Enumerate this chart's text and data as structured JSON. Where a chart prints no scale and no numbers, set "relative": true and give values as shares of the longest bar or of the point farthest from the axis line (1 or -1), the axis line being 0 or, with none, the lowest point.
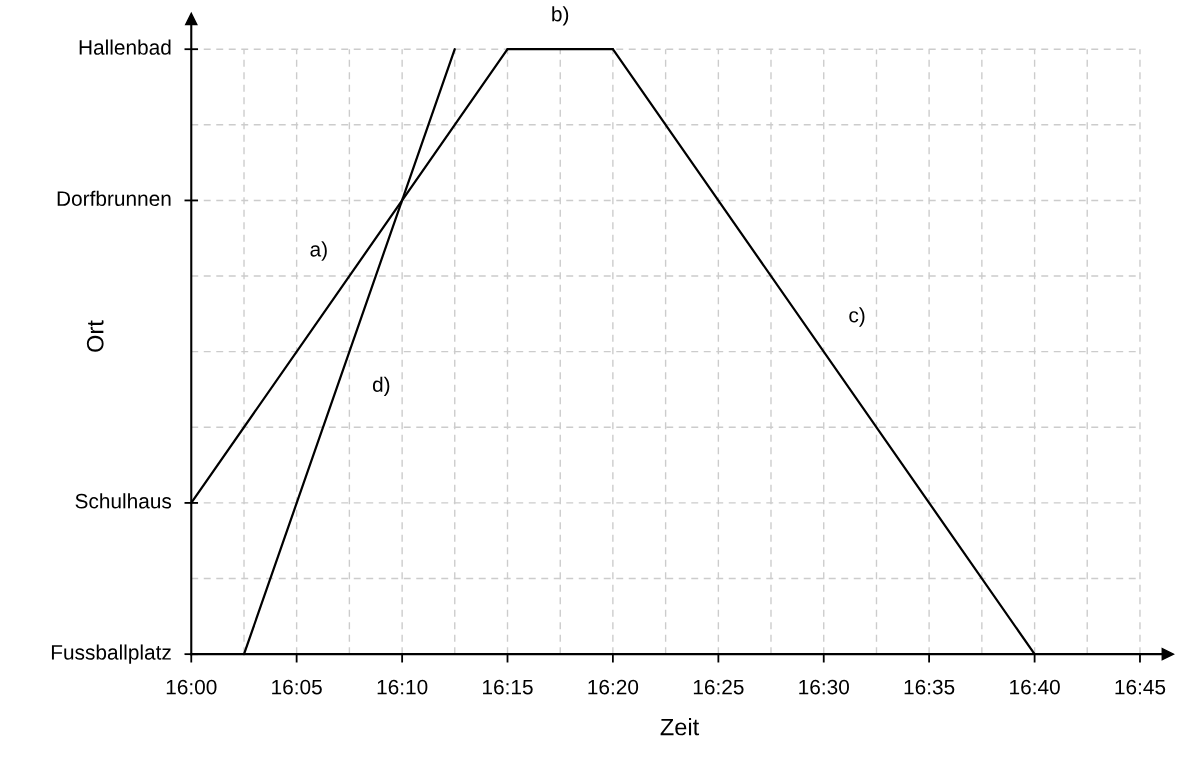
{
  "chart_data": {
    "type": "line",
    "xlabel": "Zeit",
    "ylabel": "Ort",
    "relative": true,
    "series": [
      {
        "name": "a)",
        "color": "#000000",
        "x": [
          16.0,
          16.25
        ],
        "values": [
          0.25,
          1
        ]
      },
      {
        "name": "b)",
        "color": "#000000",
        "x": [
          16.25,
          16.3333
        ],
        "values": [
          1,
          1
        ]
      },
      {
        "name": "c)",
        "color": "#000000",
        "x": [
          16.3333,
          16.6667
        ],
        "values": [
          1,
          0
        ]
      },
      {
        "name": "d)",
        "color": "#000000",
        "x": [
          16.0417,
          16.2083
        ],
        "values": [
          0,
          1
        ]
      }
    ],
    "xlim": [
      16.0,
      16.772
    ],
    "xticks": [
      {
        "value": 16.0,
        "label": "16:00"
      },
      {
        "value": 16.0417,
        "label": null
      },
      {
        "value": 16.0833,
        "label": "16:05"
      },
      {
        "value": 16.125,
        "label": null
      },
      {
        "value": 16.1667,
        "label": "16:10"
      },
      {
        "value": 16.2083,
        "label": null
      },
      {
        "value": 16.25,
        "label": "16:15"
      },
      {
        "value": 16.2917,
        "label": null
      },
      {
        "value": 16.3333,
        "label": "16:20"
      },
      {
        "value": 16.375,
        "label": null
      },
      {
        "value": 16.4167,
        "label": "16:25"
      },
      {
        "value": 16.4583,
        "label": null
      },
      {
        "value": 16.5,
        "label": "16:30"
      },
      {
        "value": 16.5417,
        "label": null
      },
      {
        "value": 16.5833,
        "label": "16:35"
      },
      {
        "value": 16.625,
        "label": null
      },
      {
        "value": 16.6667,
        "label": "16:40"
      },
      {
        "value": 16.7083,
        "label": null
      },
      {
        "value": 16.75,
        "label": "16:45"
      }
    ],
    "ref_lines": [
      {
        "axis": "y",
        "value": 0,
        "label": "Fussballplatz"
      },
      {
        "axis": "y",
        "value": 0.125
      },
      {
        "axis": "y",
        "value": 0.25,
        "label": "Schulhaus"
      },
      {
        "axis": "y",
        "value": 0.375
      },
      {
        "axis": "y",
        "value": 0.5
      },
      {
        "axis": "y",
        "value": 0.625
      },
      {
        "axis": "y",
        "value": 0.75,
        "label": "Dorfbrunnen"
      },
      {
        "axis": "y",
        "value": 0.875
      },
      {
        "axis": "y",
        "value": 1,
        "label": "Hallenbad"
      }
    ],
    "grid": "x",
    "marker": "none",
    "line_style": "solid"
  }
}
